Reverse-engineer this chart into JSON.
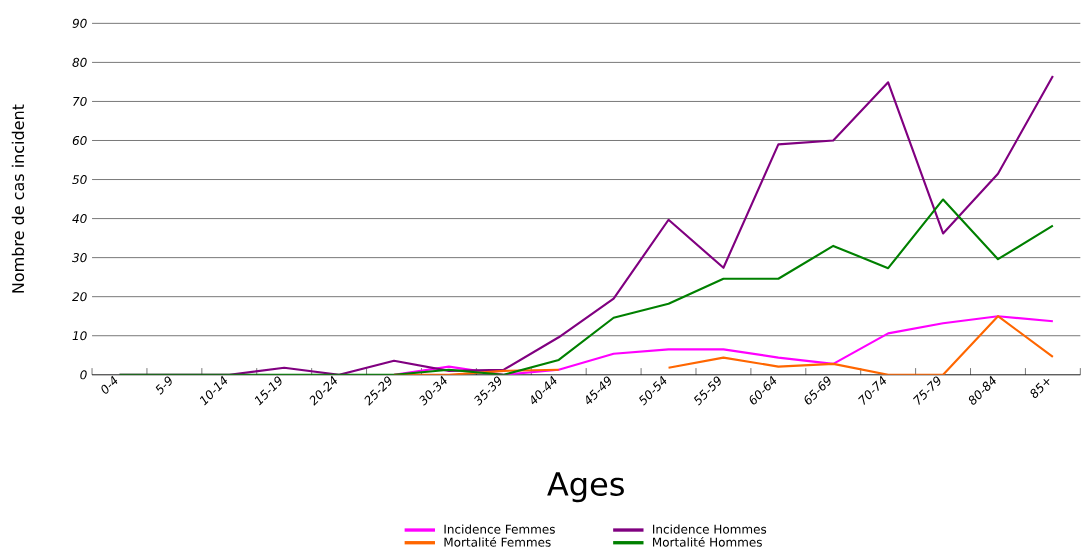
{
  "chart_data": {
    "type": "line",
    "xlabel": "Ages",
    "ylabel": "Nombre de cas incident",
    "categories": [
      "0-4",
      "5-9",
      "10-14",
      "15-19",
      "20-24",
      "25-29",
      "30-34",
      "35-39",
      "40-44",
      "45-49",
      "50-54",
      "55-59",
      "60-64",
      "65-69",
      "70-74",
      "75-79",
      "80-84",
      "85+"
    ],
    "series": [
      {
        "name": "Incidence Femmes",
        "color": "#ff00ff",
        "values": [
          null,
          null,
          null,
          null,
          null,
          0,
          2.1,
          0,
          1.3,
          5.4,
          6.5,
          6.5,
          4.4,
          2.8,
          10.6,
          13.2,
          15,
          13.7
        ]
      },
      {
        "name": "Incidence Hommes",
        "color": "#800080",
        "values": [
          0,
          0,
          0,
          1.8,
          0,
          3.6,
          1,
          1.3,
          9.6,
          19.5,
          39.7,
          27.4,
          59,
          60,
          74.9,
          36.2,
          51.5,
          76.5
        ]
      },
      {
        "name": "Mortalité Femmes",
        "color": "#ff6600",
        "values": [
          null,
          null,
          null,
          null,
          null,
          0,
          0,
          1,
          1.3,
          null,
          1.8,
          4.4,
          2.1,
          2.8,
          0,
          0,
          15,
          4.6
        ]
      },
      {
        "name": "Mortalité Hommes",
        "color": "#008000",
        "values": [
          0,
          0,
          0,
          0,
          0,
          0,
          1.3,
          0,
          3.8,
          14.6,
          18.2,
          24.6,
          24.6,
          33,
          27.3,
          44.9,
          29.6,
          38.2
        ]
      }
    ],
    "ylim": [
      0,
      90
    ],
    "yticks": [
      0,
      10,
      20,
      30,
      40,
      50,
      60,
      70,
      80,
      90
    ],
    "grid": "y",
    "legend": "bottom",
    "marker": "none",
    "line_style": "solid"
  }
}
